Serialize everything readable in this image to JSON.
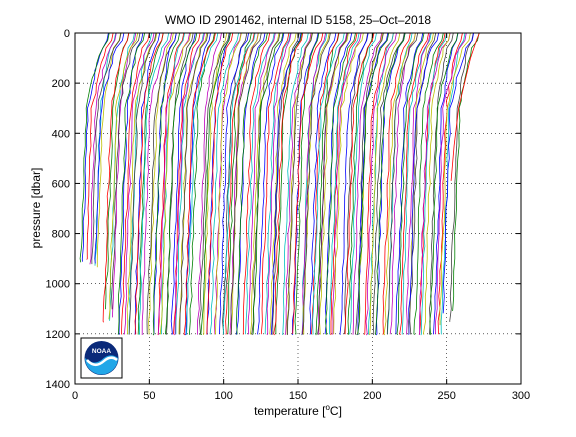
{
  "chart_data": {
    "type": "line",
    "title": "WMO ID 2901462, internal ID 5158, 25–Oct–2018",
    "xlabel": "temperature [°C]",
    "xlabel_parts": {
      "pre": "temperature [",
      "sup": "o",
      "post": "C]"
    },
    "ylabel": "pressure [dbar]",
    "xlim": [
      0,
      300
    ],
    "ylim": [
      0,
      1400
    ],
    "y_reversed": true,
    "grid": true,
    "grid_style": "dotted",
    "xticks": [
      0,
      50,
      100,
      150,
      200,
      250,
      300
    ],
    "yticks": [
      0,
      200,
      400,
      600,
      800,
      1000,
      1200,
      1400
    ],
    "profile_colors": [
      "#0000ff",
      "#008000",
      "#ff0000",
      "#00bfbf",
      "#bf00bf",
      "#bfbf00",
      "#404040"
    ],
    "waterfall": {
      "description": "offset temperature profiles, one per cycle",
      "profile_count": 150,
      "first_start_temp": 22,
      "last_start_temp": 272,
      "surface_pressure": 30,
      "deep_end_pressures": [
        900,
        1100,
        1200
      ],
      "last_profile_end": {
        "temp": 253,
        "pressure": 590
      }
    },
    "logo": {
      "text": "NOAA"
    }
  }
}
